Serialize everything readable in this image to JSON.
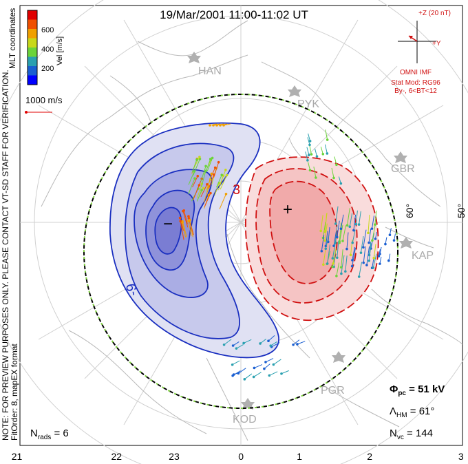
{
  "chart_data": {
    "type": "contour",
    "title": "19/Mar/2001 11:00-11:02 UT",
    "coordinate_system": "MLT coordinates",
    "colorbar": {
      "label": "Vel [m/s]",
      "ticks": [
        "600",
        "400",
        "200"
      ],
      "colors": [
        "#0000ff",
        "#1a5fd1",
        "#2aa0b0",
        "#6bd43a",
        "#c8d81a",
        "#f0a000",
        "#f05000",
        "#e00000"
      ]
    },
    "reference_vector": "1000 m/s",
    "imf": {
      "z_label": "+Z (20 nT)",
      "y_label": "+Y",
      "source": "OMNI IMF",
      "model_lines": [
        "Stat Mod: RG96",
        "By-, 6<BT<12"
      ]
    },
    "stations": [
      "HAN",
      "PYK",
      "GBR",
      "KAP",
      "PGR",
      "KOD"
    ],
    "latitude_labels": [
      "60°",
      "50°"
    ],
    "mlt_ticks": [
      "21",
      "22",
      "23",
      "0",
      "1",
      "2",
      "3"
    ],
    "convection_cells": {
      "negative": {
        "symbol": "−",
        "contour_label": "-9"
      },
      "positive": {
        "symbol": "+",
        "contour_label": "3"
      }
    },
    "stats": {
      "phi_pc": {
        "label": "Φpc",
        "value": "51 kV"
      },
      "lambda_hm": {
        "label": "ΛHM",
        "value": "61°"
      },
      "n_vc": {
        "label": "Nvc",
        "value": "144"
      },
      "n_rads": {
        "label": "Nrads",
        "value": "6"
      }
    },
    "side_notes": [
      "NOTE: FOR PREVIEW PURPOSES ONLY. PLEASE CONTACT VT-SD STAFF FOR VERIFICATION.",
      "FitOrder: 8, mapEX format"
    ]
  }
}
